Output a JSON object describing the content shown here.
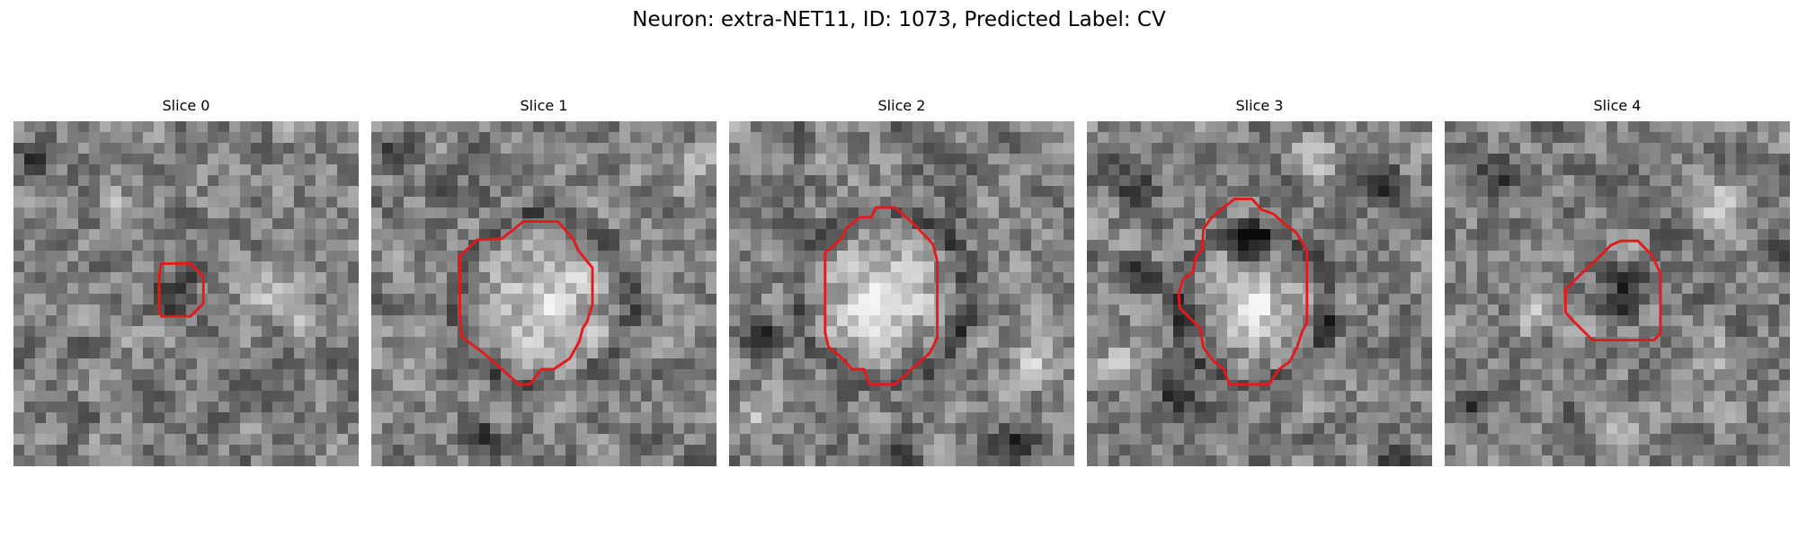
{
  "figure": {
    "title": "Neuron: extra-NET11, ID: 1073, Predicted Label: CV"
  },
  "colors": {
    "contour": "#e31a1c",
    "colormap": "grayscale"
  },
  "grid_size": 32,
  "slices": [
    {
      "title": "Slice 0",
      "contour": [
        [
          13.7,
          13.2
        ],
        [
          16.4,
          13.2
        ],
        [
          17.6,
          14.4
        ],
        [
          17.6,
          16.9
        ],
        [
          16.4,
          18.1
        ],
        [
          13.7,
          18.1
        ],
        [
          13.5,
          17.6
        ],
        [
          13.5,
          14.4
        ]
      ],
      "dark_spots": [
        [
          1,
          4,
          1.8
        ],
        [
          16,
          13,
          1.4
        ],
        [
          6,
          27,
          1.5
        ],
        [
          23,
          26,
          1.4
        ],
        [
          14,
          16,
          1.8
        ]
      ],
      "light_spots": [
        [
          23,
          15,
          2.3
        ],
        [
          26,
          18,
          1.8
        ],
        [
          9,
          8,
          1.5
        ],
        [
          29,
          11,
          1.5
        ]
      ]
    },
    {
      "title": "Slice 1",
      "contour": [
        [
          14.1,
          9.3
        ],
        [
          17.3,
          9.3
        ],
        [
          18.7,
          10.9
        ],
        [
          19.2,
          12.0
        ],
        [
          20.5,
          13.6
        ],
        [
          20.5,
          17.0
        ],
        [
          20.0,
          18.6
        ],
        [
          19.6,
          19.2
        ],
        [
          19.3,
          20.4
        ],
        [
          18.4,
          22.0
        ],
        [
          16.9,
          23.0
        ],
        [
          15.8,
          23.0
        ],
        [
          14.7,
          24.4
        ],
        [
          13.7,
          24.4
        ],
        [
          12.1,
          23.0
        ],
        [
          10.4,
          21.5
        ],
        [
          8.4,
          20.0
        ],
        [
          8.2,
          18.0
        ],
        [
          8.2,
          12.5
        ],
        [
          9.8,
          11.0
        ],
        [
          12.1,
          10.9
        ]
      ],
      "ring": [
        16.0,
        16.5,
        7.6
      ],
      "dark_spots": [
        [
          2,
          2,
          1.6
        ],
        [
          10,
          29,
          1.5
        ]
      ],
      "light_spots": [
        [
          16,
          17,
          4.5
        ],
        [
          29,
          4,
          1.8
        ],
        [
          3,
          24,
          1.6
        ]
      ]
    },
    {
      "title": "Slice 2",
      "contour": [
        [
          13.6,
          8.0
        ],
        [
          15.4,
          8.0
        ],
        [
          17.2,
          9.6
        ],
        [
          18.9,
          11.4
        ],
        [
          19.3,
          13.0
        ],
        [
          19.3,
          20.1
        ],
        [
          18.6,
          21.5
        ],
        [
          16.9,
          23.0
        ],
        [
          15.4,
          24.4
        ],
        [
          14.1,
          24.4
        ],
        [
          13.0,
          24.4
        ],
        [
          12.5,
          23.0
        ],
        [
          11.4,
          23.0
        ],
        [
          10.5,
          22.0
        ],
        [
          9.2,
          20.9
        ],
        [
          8.9,
          19.6
        ],
        [
          8.9,
          12.2
        ],
        [
          10.4,
          10.9
        ],
        [
          10.9,
          9.9
        ],
        [
          12.1,
          8.9
        ],
        [
          13.2,
          8.9
        ]
      ],
      "ring": [
        14.2,
        16.2,
        7.4
      ],
      "dark_spots": [
        [
          15,
          30,
          1.8
        ],
        [
          2,
          19,
          1.6
        ],
        [
          26,
          29,
          1.5
        ]
      ],
      "light_spots": [
        [
          14,
          16,
          4.5
        ],
        [
          2,
          27,
          1.8
        ],
        [
          28,
          22,
          1.6
        ]
      ]
    },
    {
      "title": "Slice 3",
      "contour": [
        [
          13.7,
          7.2
        ],
        [
          15.3,
          7.2
        ],
        [
          16.2,
          8.2
        ],
        [
          17.3,
          8.6
        ],
        [
          18.3,
          9.5
        ],
        [
          19.4,
          10.3
        ],
        [
          20.4,
          12.0
        ],
        [
          20.4,
          18.7
        ],
        [
          20.0,
          19.4
        ],
        [
          19.5,
          20.9
        ],
        [
          18.8,
          22.3
        ],
        [
          17.8,
          23.0
        ],
        [
          16.9,
          24.4
        ],
        [
          15.4,
          24.4
        ],
        [
          13.2,
          24.4
        ],
        [
          12.7,
          23.0
        ],
        [
          11.8,
          22.3
        ],
        [
          10.8,
          21.0
        ],
        [
          10.5,
          19.2
        ],
        [
          9.6,
          18.3
        ],
        [
          8.6,
          17.3
        ],
        [
          8.5,
          16.0
        ],
        [
          8.9,
          14.7
        ],
        [
          9.8,
          14.0
        ],
        [
          10.1,
          12.6
        ],
        [
          10.7,
          11.9
        ],
        [
          10.8,
          10.0
        ],
        [
          11.5,
          9.0
        ],
        [
          12.3,
          8.3
        ]
      ],
      "ring": [
        15.5,
        17.3,
        6.5
      ],
      "dark_spots": [
        [
          4,
          5,
          2.2
        ],
        [
          26,
          5,
          2.0
        ],
        [
          15,
          11,
          1.8
        ],
        [
          8,
          25,
          1.8
        ],
        [
          4,
          14,
          1.6
        ],
        [
          28,
          31,
          1.5
        ]
      ],
      "light_spots": [
        [
          16,
          17,
          2.8
        ],
        [
          21,
          3,
          2.0
        ],
        [
          3,
          22,
          1.8
        ]
      ]
    },
    {
      "title": "Slice 4",
      "contour": [
        [
          16.3,
          11.1
        ],
        [
          17.9,
          11.1
        ],
        [
          19.2,
          12.4
        ],
        [
          20.0,
          14.1
        ],
        [
          20.0,
          19.7
        ],
        [
          19.4,
          20.3
        ],
        [
          13.7,
          20.3
        ],
        [
          11.7,
          18.3
        ],
        [
          11.2,
          17.7
        ],
        [
          11.2,
          15.6
        ],
        [
          12.7,
          14.1
        ],
        [
          14.3,
          12.6
        ],
        [
          15.4,
          11.5
        ]
      ],
      "dark_spots": [
        [
          5,
          5,
          2.2
        ],
        [
          16,
          15,
          2.2
        ],
        [
          30,
          11,
          1.6
        ],
        [
          2,
          26,
          1.8
        ],
        [
          11,
          27,
          1.4
        ]
      ],
      "light_spots": [
        [
          25,
          7,
          2.0
        ],
        [
          8,
          17,
          2.0
        ],
        [
          25,
          21,
          1.8
        ],
        [
          16,
          29,
          1.5
        ]
      ]
    }
  ]
}
